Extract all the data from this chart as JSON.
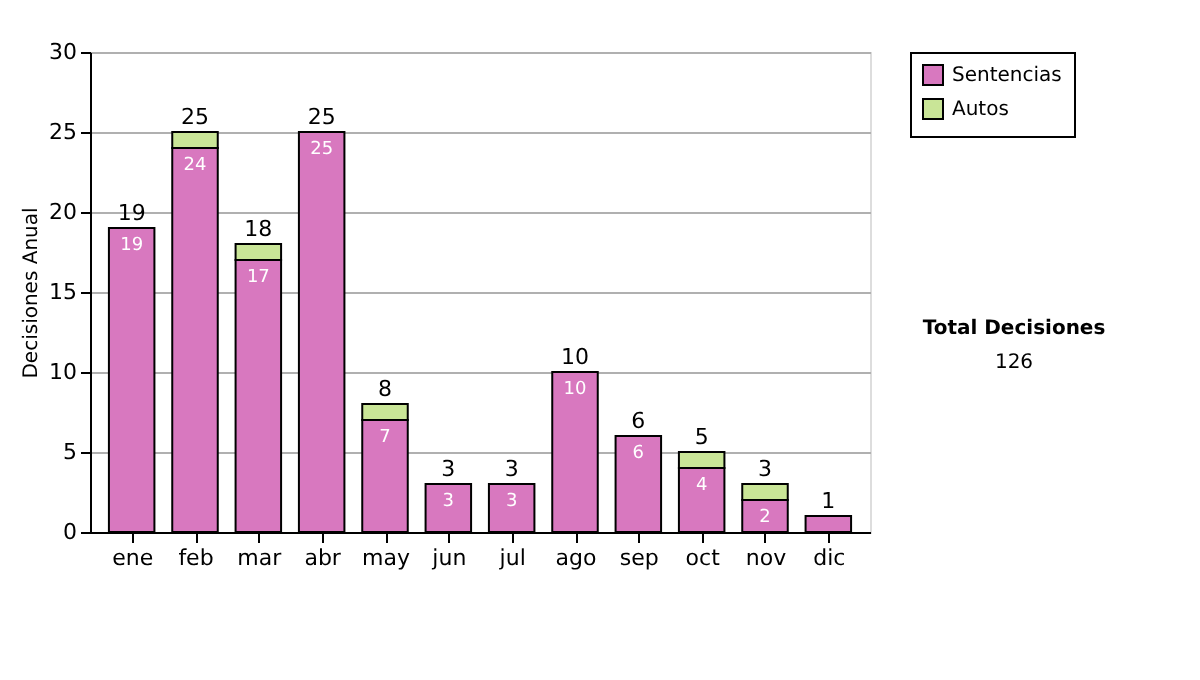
{
  "chart_data": {
    "type": "bar",
    "stacked": true,
    "ylabel": "Decisiones Anual",
    "categories": [
      "ene",
      "feb",
      "mar",
      "abr",
      "may",
      "jun",
      "jul",
      "ago",
      "sep",
      "oct",
      "nov",
      "dic"
    ],
    "series": [
      {
        "name": "Sentencias",
        "color": "#d878bf",
        "values": [
          19,
          24,
          17,
          25,
          7,
          3,
          3,
          10,
          6,
          4,
          2,
          1
        ],
        "value_labels": [
          "19",
          "24",
          "17",
          "25",
          "7",
          "3",
          "3",
          "10",
          "6",
          "4",
          "2",
          null
        ]
      },
      {
        "name": "Autos",
        "color": "#c9e597",
        "values": [
          null,
          1,
          1,
          null,
          1,
          null,
          null,
          null,
          null,
          1,
          1,
          null
        ]
      }
    ],
    "totals": [
      "19",
      "25",
      "18",
      "25",
      "8",
      "3",
      "3",
      "10",
      "6",
      "5",
      "3",
      "1"
    ],
    "ylim": [
      0,
      30
    ],
    "yticks": [
      0,
      5,
      10,
      15,
      20,
      25,
      30
    ],
    "grid": "y",
    "legend": "right",
    "annotations": [
      "Total Decisiones",
      "126"
    ]
  }
}
